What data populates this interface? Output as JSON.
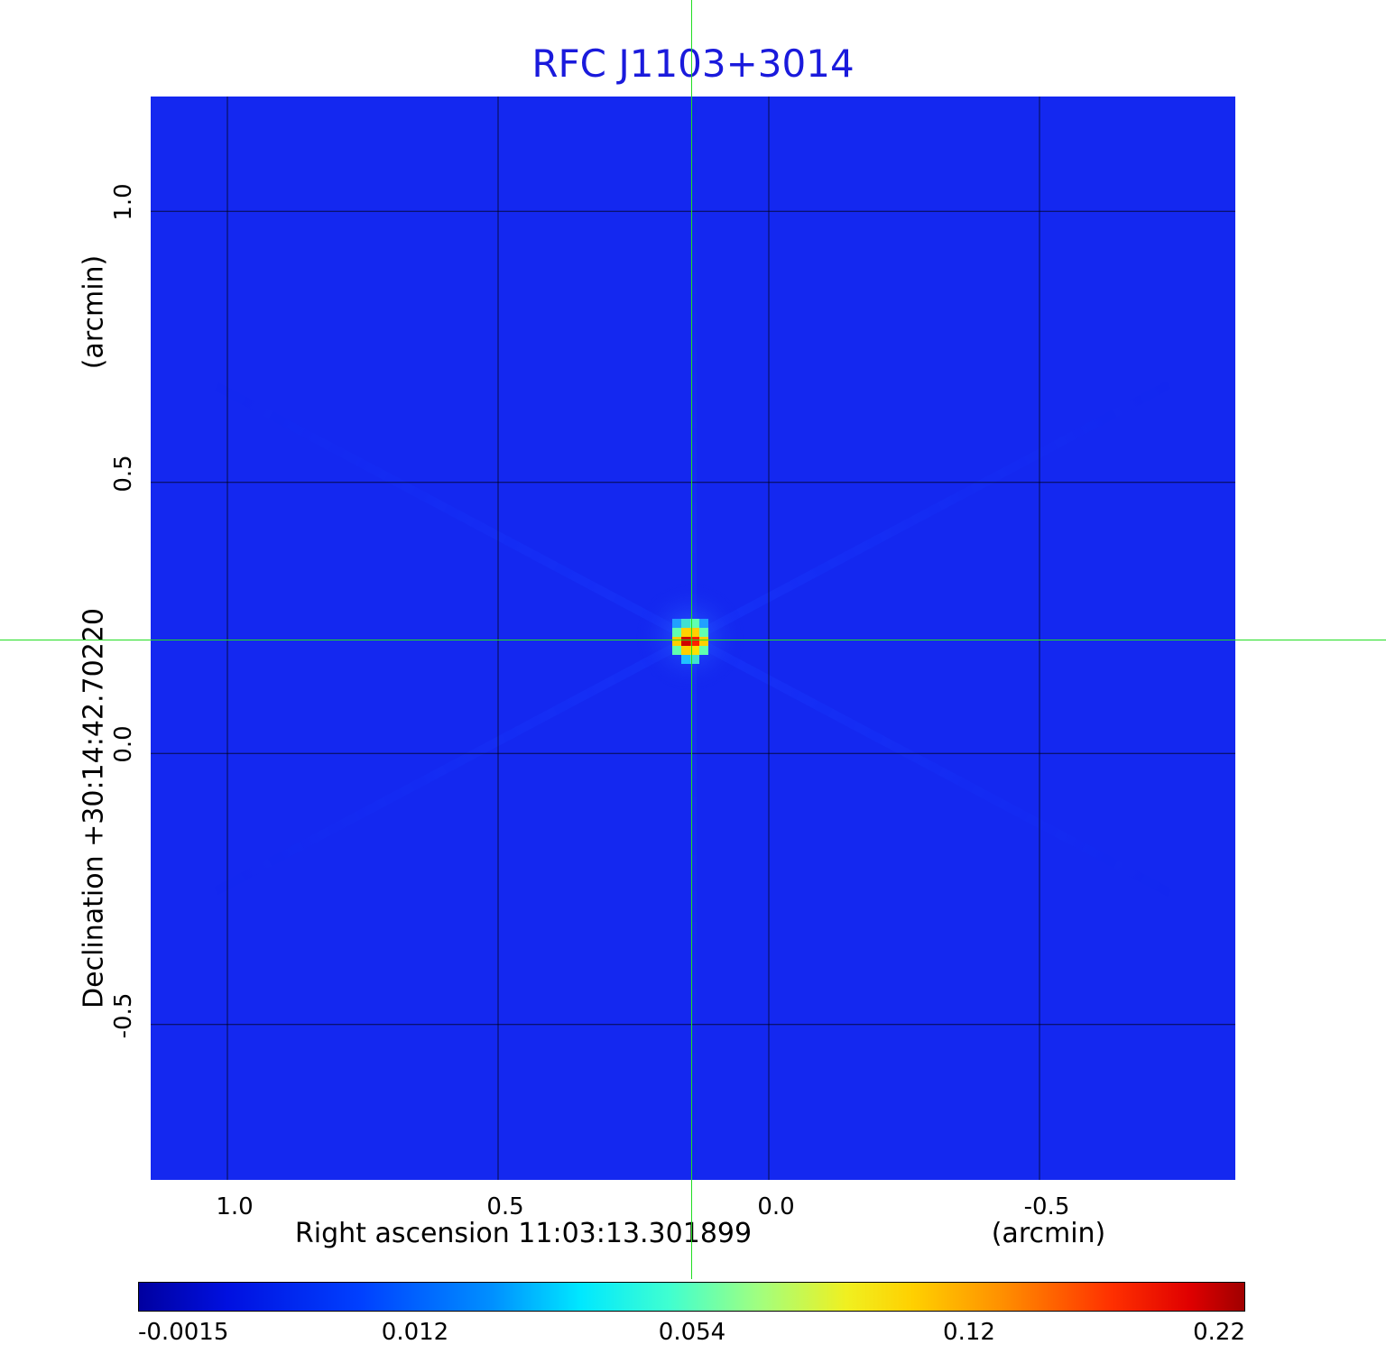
{
  "title": "RFC J1103+3014",
  "x_axis": {
    "label": "Right ascension  11:03:13.301899",
    "unit": "(arcmin)",
    "ticks": [
      "1.0",
      "0.5",
      "0.0",
      "-0.5"
    ],
    "tick_values": [
      1.0,
      0.5,
      0.0,
      -0.5
    ],
    "range": [
      1.145,
      -0.865
    ]
  },
  "y_axis": {
    "label": "Declination  +30:14:42.70220",
    "unit": "(arcmin)",
    "ticks": [
      "1.0",
      "0.5",
      "0.0",
      "-0.5"
    ],
    "tick_values": [
      1.0,
      0.5,
      0.0,
      -0.5
    ],
    "range": [
      -0.79,
      1.215
    ]
  },
  "grid": true,
  "image": {
    "background_color": "#1428f0",
    "source_position_arcmin": [
      0.145,
      0.215
    ],
    "peak_value": 0.22
  },
  "colorbar": {
    "labels": [
      "-0.0015",
      "0.012",
      "0.054",
      "0.12",
      "0.22"
    ],
    "colormap": "jet"
  },
  "crosshair_color": "#22dd22"
}
